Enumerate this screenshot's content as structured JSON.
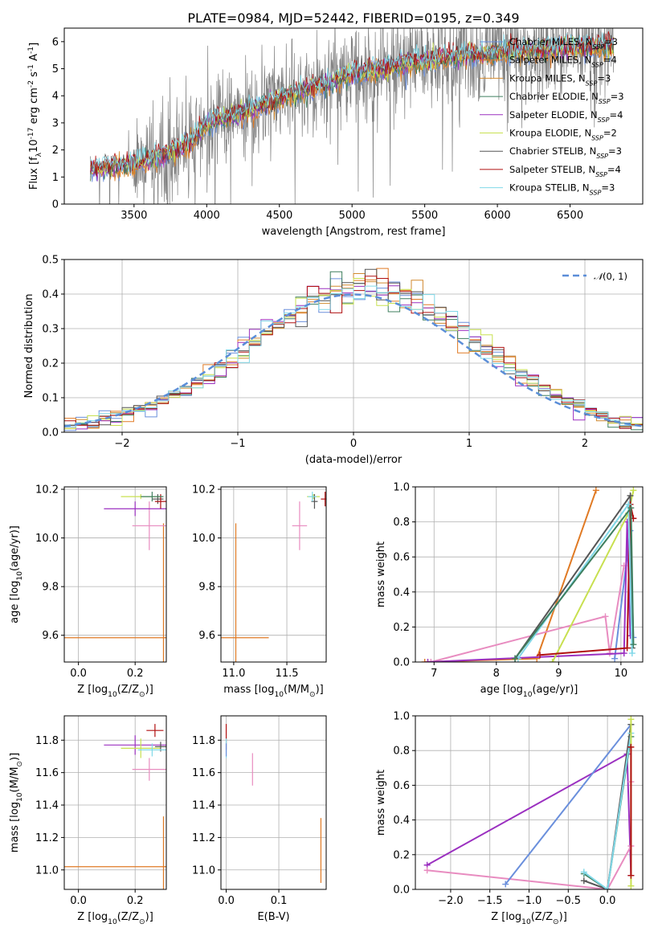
{
  "chart_data": [
    {
      "type": "line",
      "title": "PLATE=0984, MJD=52442, FIBERID=0195, z=0.349",
      "xlabel": "wavelength [Angstrom, rest frame]",
      "ylabel": "Flux [f$_\\lambda$10$^{-17}$ erg cm$^{-2}$ s$^{-1}$ A$^{-1}$]",
      "xlim": [
        3020,
        7000
      ],
      "ylim": [
        0,
        6.5
      ],
      "xticks": [
        3500,
        4000,
        4500,
        5000,
        5500,
        6000,
        6500
      ],
      "yticks": [
        0,
        1,
        2,
        3,
        4,
        5,
        6
      ],
      "grid": false,
      "legend_position": "top-right",
      "data_color": "#808080",
      "continuum_x": [
        3200,
        3500,
        3700,
        3900,
        4000,
        4200,
        4500,
        4800,
        5000,
        5200,
        5500,
        5800,
        6000,
        6300,
        6600,
        6800
      ],
      "continuum_y": [
        1.3,
        1.5,
        1.8,
        2.3,
        3.0,
        3.3,
        3.9,
        4.4,
        4.8,
        5.0,
        5.3,
        5.5,
        5.6,
        5.7,
        5.8,
        5.8
      ],
      "series": [
        {
          "name": "Chabrier MILES, N$_{SSP}$=3",
          "label": "Chabrier MILES, N",
          "sub": "SSP",
          "tail": "=3",
          "color": "#6a8fdc"
        },
        {
          "name": "Salpeter MILES, N$_{SSP}$=4",
          "label": "Salpeter MILES, N",
          "sub": "SSP",
          "tail": "=4",
          "color": "#e07a24"
        },
        {
          "name": "Kroupa MILES, N$_{SSP}$=3",
          "label": "Kroupa MILES, N",
          "sub": "SSP",
          "tail": "=3",
          "color": "#d2892f"
        },
        {
          "name": "Chabrier ELODIE, N$_{SSP}$=3",
          "label": "Chabrier ELODIE, N",
          "sub": "SSP",
          "tail": "=3",
          "color": "#3f7f5f"
        },
        {
          "name": "Salpeter ELODIE, N$_{SSP}$=4",
          "label": "Salpeter ELODIE, N",
          "sub": "SSP",
          "tail": "=4",
          "color": "#9b30c0"
        },
        {
          "name": "Kroupa ELODIE, N$_{SSP}$=2",
          "label": "Kroupa ELODIE, N",
          "sub": "SSP",
          "tail": "=2",
          "color": "#c8e050"
        },
        {
          "name": "Chabrier STELIB, N$_{SSP}$=3",
          "label": "Chabrier STELIB, N",
          "sub": "SSP",
          "tail": "=3",
          "color": "#555555"
        },
        {
          "name": "Salpeter STELIB, N$_{SSP}$=4",
          "label": "Salpeter STELIB, N",
          "sub": "SSP",
          "tail": "=4",
          "color": "#b01010"
        },
        {
          "name": "Kroupa STELIB, N$_{SSP}$=3",
          "label": "Kroupa STELIB, N",
          "sub": "SSP",
          "tail": "=3",
          "color": "#80d8e8"
        }
      ]
    },
    {
      "type": "histogram",
      "xlabel": "(data-model)/error",
      "ylabel": "Normed distribution",
      "xlim": [
        -2.5,
        2.5
      ],
      "ylim": [
        0,
        0.5
      ],
      "xticks": [
        -2,
        -1,
        0,
        1,
        2
      ],
      "yticks": [
        0.0,
        0.1,
        0.2,
        0.3,
        0.4,
        0.5
      ],
      "grid": true,
      "legend_position": "top-right",
      "reference_curve": {
        "label_pre": "𝒩",
        "label_post": "(0, 1)",
        "mean": 0,
        "sigma": 1,
        "color": "#5b8ed8",
        "dash": true
      },
      "bin_width": 0.1,
      "bin_start": -2.5,
      "series_colors": [
        "#6a8fdc",
        "#e07a24",
        "#d2892f",
        "#3f7f5f",
        "#9b30c0",
        "#c8e050",
        "#555555",
        "#b01010",
        "#80d8e8"
      ]
    },
    {
      "type": "scatter",
      "xlabel": "Z [log$_{10}$(Z/Z$_\\odot$)]",
      "ylabel": "age [log$_{10}$(age/yr)]",
      "xlim": [
        -0.05,
        0.31
      ],
      "ylim": [
        9.49,
        10.21
      ],
      "xticks": [
        0.0,
        0.2
      ],
      "yticks": [
        9.6,
        9.8,
        10.0,
        10.2
      ],
      "grid": true,
      "points": [
        {
          "x": 0.3,
          "xerr": 0.35,
          "y": 9.59,
          "yerr": 0.47,
          "color": "#e07a24"
        },
        {
          "x": 0.25,
          "xerr": 0.06,
          "y": 10.05,
          "yerr": 0.1,
          "color": "#e88cc0"
        },
        {
          "x": 0.2,
          "xerr": 0.11,
          "y": 10.12,
          "yerr": 0.03,
          "color": "#9b30c0"
        },
        {
          "x": 0.22,
          "xerr": 0.07,
          "y": 10.17,
          "yerr": 0.01,
          "color": "#c8e050"
        },
        {
          "x": 0.28,
          "xerr": 0.02,
          "y": 10.16,
          "yerr": 0.02,
          "color": "#555555"
        },
        {
          "x": 0.29,
          "xerr": 0.02,
          "y": 10.15,
          "yerr": 0.03,
          "color": "#b01010"
        },
        {
          "x": 0.26,
          "xerr": 0.04,
          "y": 10.17,
          "yerr": 0.02,
          "color": "#3f7f5f"
        }
      ]
    },
    {
      "type": "scatter",
      "xlabel": "mass [log$_{10}$(M/M$_\\odot$)]",
      "ylabel": "",
      "xlim": [
        10.88,
        11.87
      ],
      "ylim": [
        9.49,
        10.21
      ],
      "xticks": [
        11.0,
        11.5
      ],
      "yticks": [
        9.6,
        9.8,
        10.0,
        10.2
      ],
      "grid": true,
      "points": [
        {
          "x": 11.02,
          "xerr": 0.31,
          "y": 9.59,
          "yerr": 0.47,
          "color": "#e07a24"
        },
        {
          "x": 11.62,
          "xerr": 0.07,
          "y": 10.05,
          "yerr": 0.1,
          "color": "#e88cc0"
        },
        {
          "x": 11.75,
          "xerr": 0.06,
          "y": 10.17,
          "yerr": 0.01,
          "color": "#c8e050"
        },
        {
          "x": 11.76,
          "xerr": 0.03,
          "y": 10.15,
          "yerr": 0.03,
          "color": "#555555"
        },
        {
          "x": 11.86,
          "xerr": 0.04,
          "y": 10.16,
          "yerr": 0.03,
          "color": "#b01010"
        },
        {
          "x": 11.74,
          "xerr": 0.04,
          "y": 10.17,
          "yerr": 0.02,
          "color": "#80d8e8"
        }
      ]
    },
    {
      "type": "line",
      "xlabel": "age [log$_{10}$(age/yr)]",
      "ylabel": "mass weight",
      "xlim": [
        6.7,
        10.35
      ],
      "ylim": [
        0,
        1.0
      ],
      "xticks": [
        7,
        8,
        9,
        10
      ],
      "yticks": [
        0.0,
        0.2,
        0.4,
        0.6,
        0.8,
        1.0
      ],
      "grid": true,
      "series": [
        {
          "color": "#e07a24",
          "x": [
            6.85,
            8.65,
            9.6
          ],
          "y": [
            0.0,
            0.02,
            0.98
          ]
        },
        {
          "color": "#6a8fdc",
          "x": [
            9.9,
            10.15,
            10.2
          ],
          "y": [
            0.02,
            0.75,
            0.14
          ]
        },
        {
          "color": "#e88cc0",
          "x": [
            6.95,
            9.75,
            9.82,
            10.05
          ],
          "y": [
            0.0,
            0.26,
            0.05,
            0.55
          ]
        },
        {
          "color": "#9b30c0",
          "x": [
            6.9,
            10.05,
            10.1,
            10.15
          ],
          "y": [
            0.0,
            0.05,
            0.8,
            0.15
          ]
        },
        {
          "color": "#c8e050",
          "x": [
            8.9,
            10.12,
            10.2
          ],
          "y": [
            0.0,
            0.85,
            0.98
          ]
        },
        {
          "color": "#555555",
          "x": [
            8.3,
            10.15,
            10.18
          ],
          "y": [
            0.02,
            0.95,
            0.08
          ]
        },
        {
          "color": "#b01010",
          "x": [
            8.7,
            10.1,
            10.15,
            10.2
          ],
          "y": [
            0.04,
            0.08,
            0.9,
            0.82
          ]
        },
        {
          "color": "#80d8e8",
          "x": [
            8.35,
            10.12,
            10.18
          ],
          "y": [
            0.02,
            0.9,
            0.05
          ]
        },
        {
          "color": "#3f7f5f",
          "x": [
            8.3,
            10.16,
            10.2
          ],
          "y": [
            0.02,
            0.88,
            0.1
          ]
        }
      ]
    },
    {
      "type": "scatter",
      "xlabel": "Z [log$_{10}$(Z/Z$_\\odot$)]",
      "ylabel": "mass [log$_{10}$(M/M$_\\odot$)]",
      "xlim": [
        -0.05,
        0.31
      ],
      "ylim": [
        10.88,
        11.95
      ],
      "xticks": [
        0.0,
        0.2
      ],
      "yticks": [
        11.0,
        11.2,
        11.4,
        11.6,
        11.8
      ],
      "grid": true,
      "points": [
        {
          "x": 0.3,
          "xerr": 0.35,
          "y": 11.02,
          "yerr": 0.31,
          "color": "#e07a24"
        },
        {
          "x": 0.25,
          "xerr": 0.06,
          "y": 11.62,
          "yerr": 0.07,
          "color": "#e88cc0"
        },
        {
          "x": 0.2,
          "xerr": 0.11,
          "y": 11.77,
          "yerr": 0.06,
          "color": "#9b30c0"
        },
        {
          "x": 0.22,
          "xerr": 0.07,
          "y": 11.75,
          "yerr": 0.06,
          "color": "#c8e050"
        },
        {
          "x": 0.27,
          "xerr": 0.03,
          "y": 11.86,
          "yerr": 0.04,
          "color": "#b01010"
        },
        {
          "x": 0.29,
          "xerr": 0.02,
          "y": 11.76,
          "yerr": 0.03,
          "color": "#555555"
        },
        {
          "x": 0.26,
          "xerr": 0.05,
          "y": 11.74,
          "yerr": 0.04,
          "color": "#80d8e8"
        }
      ]
    },
    {
      "type": "scatter",
      "xlabel": "E(B-V)",
      "ylabel": "",
      "xlim": [
        -0.01,
        0.19
      ],
      "ylim": [
        10.88,
        11.95
      ],
      "xticks": [
        0.0,
        0.1
      ],
      "yticks": [
        11.0,
        11.2,
        11.4,
        11.6,
        11.8
      ],
      "grid": true,
      "points": [
        {
          "x": 0.18,
          "xerr": 0,
          "y": 11.12,
          "yerr": 0.2,
          "color": "#e07a24"
        },
        {
          "x": 0.05,
          "xerr": 0,
          "y": 11.62,
          "yerr": 0.1,
          "color": "#e88cc0"
        },
        {
          "x": 0.0,
          "xerr": 0,
          "y": 11.82,
          "yerr": 0.08,
          "color": "#b01010"
        },
        {
          "x": 0.0,
          "xerr": 0,
          "y": 11.75,
          "yerr": 0.06,
          "color": "#80d8e8"
        },
        {
          "x": 0.0,
          "xerr": 0,
          "y": 11.74,
          "yerr": 0.04,
          "color": "#6a8fdc"
        }
      ]
    },
    {
      "type": "line",
      "xlabel": "Z [log$_{10}$(Z/Z$_\\odot$)]",
      "ylabel": "mass weight",
      "xlim": [
        -2.45,
        0.45
      ],
      "ylim": [
        0,
        1.0
      ],
      "xticks": [
        -2.0,
        -1.5,
        -1.0,
        -0.5,
        0.0
      ],
      "yticks": [
        0.0,
        0.2,
        0.4,
        0.6,
        0.8,
        1.0
      ],
      "grid": true,
      "series": [
        {
          "color": "#9b30c0",
          "x": [
            -2.3,
            0.25,
            0.3
          ],
          "y": [
            0.14,
            0.78,
            0.08
          ]
        },
        {
          "color": "#e88cc0",
          "x": [
            -2.3,
            0.0,
            0.3,
            0.3
          ],
          "y": [
            0.11,
            0.0,
            0.25,
            0.62
          ]
        },
        {
          "color": "#6a8fdc",
          "x": [
            -1.3,
            0.3
          ],
          "y": [
            0.03,
            0.95
          ]
        },
        {
          "color": "#3f7f5f",
          "x": [
            -0.3,
            0.0,
            0.3
          ],
          "y": [
            0.09,
            0.0,
            0.88
          ]
        },
        {
          "color": "#555555",
          "x": [
            -0.3,
            0.0,
            0.3
          ],
          "y": [
            0.05,
            0.0,
            0.95
          ]
        },
        {
          "color": "#80d8e8",
          "x": [
            -0.3,
            0.0,
            0.3
          ],
          "y": [
            0.1,
            0.0,
            0.9
          ]
        },
        {
          "color": "#c8e050",
          "x": [
            0.3,
            0.3
          ],
          "y": [
            0.02,
            0.98
          ]
        },
        {
          "color": "#b01010",
          "x": [
            0.3,
            0.3
          ],
          "y": [
            0.08,
            0.82
          ]
        }
      ]
    }
  ]
}
